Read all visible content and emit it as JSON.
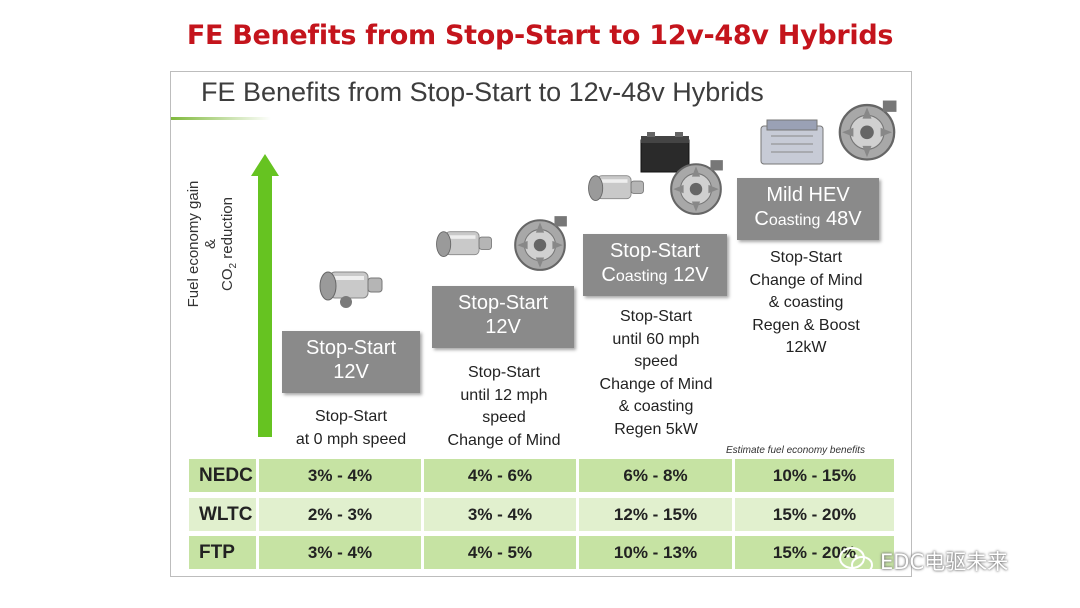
{
  "page_title": "FE Benefits from Stop-Start to 12v-48v Hybrids",
  "slide": {
    "title": "FE Benefits from Stop-Start to 12v-48v Hybrids",
    "axis_label": {
      "line1": "Fuel economy gain",
      "line2": "&",
      "line3_prefix": "CO",
      "line3_sub": "2",
      "line3_suffix": " reduction"
    },
    "stages": [
      {
        "box_line1": "Stop-Start",
        "box_line2": "12V",
        "description": [
          "Stop-Start",
          "at 0 mph speed"
        ]
      },
      {
        "box_line1": "Stop-Start",
        "box_line2": "12V",
        "description": [
          "Stop-Start",
          "until 12 mph",
          "speed",
          "Change of Mind"
        ]
      },
      {
        "box_line1": "Stop-Start",
        "box_line2_prefix": "C",
        "box_line2_small": "oasting",
        "box_line2_suffix": " 12V",
        "description": [
          "Stop-Start",
          "until 60 mph",
          "speed",
          "Change of Mind",
          "& coasting",
          "Regen 5kW"
        ]
      },
      {
        "box_line1": "Mild HEV",
        "box_line2_prefix": "C",
        "box_line2_small": "oasting",
        "box_line2_suffix": " 48V",
        "description": [
          "Stop-Start",
          "Change of Mind",
          "& coasting",
          "Regen & Boost",
          "12kW"
        ]
      }
    ],
    "estimate_note": "Estimate fuel economy benefits",
    "table": {
      "rows": [
        {
          "label": "NEDC",
          "values": [
            "3% - 4%",
            "4% - 6%",
            "6% - 8%",
            "10% - 15%"
          ]
        },
        {
          "label": "WLTC",
          "values": [
            "2% - 3%",
            "3% - 4%",
            "12% - 15%",
            "15% - 20%"
          ]
        },
        {
          "label": "FTP",
          "values": [
            "3% - 4%",
            "4% - 5%",
            "10% - 13%",
            "15% - 20%"
          ]
        }
      ]
    },
    "icons": [
      "starter-motor-icon",
      "alternator-icon",
      "battery-icon",
      "dc-dc-converter-icon"
    ],
    "colors": {
      "page_title": "#c4141c",
      "arrow": "#66c321",
      "stage_box": "#8a8a8a",
      "row_dark": "#c6e3a3",
      "row_light": "#e1f0ce"
    }
  },
  "watermark": "EDC电驱未来"
}
